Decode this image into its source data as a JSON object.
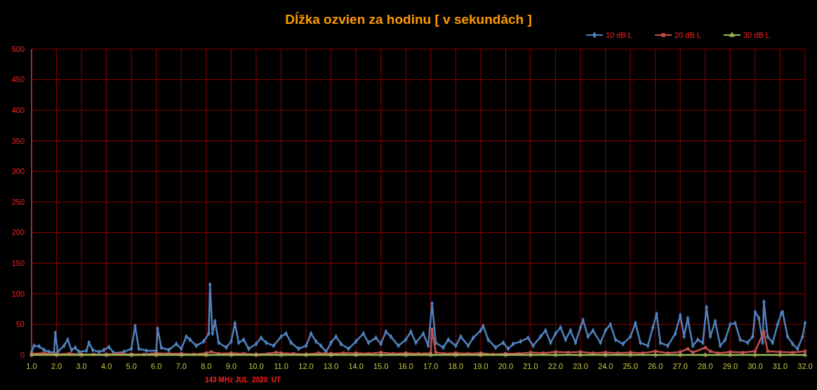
{
  "chart_data": {
    "type": "line",
    "title": "Dĺžka ozvien za hodinu [ v sekundách ]",
    "xlabel": "143 MHz JUL  2020  UT",
    "xlim": [
      1,
      32
    ],
    "ylim": [
      0,
      500
    ],
    "yticks": [
      0,
      50,
      100,
      150,
      200,
      250,
      300,
      350,
      400,
      450,
      500
    ],
    "xticks": [
      {
        "value": 1,
        "label": "1.0"
      },
      {
        "value": 2,
        "label": "2.0"
      },
      {
        "value": 3,
        "label": "3.0"
      },
      {
        "value": 4,
        "label": "4.0"
      },
      {
        "value": 5,
        "label": "5.0"
      },
      {
        "value": 6,
        "label": "6.0"
      },
      {
        "value": 7,
        "label": "7.0"
      },
      {
        "value": 8,
        "label": "8.0"
      },
      {
        "value": 9,
        "label": "9.0"
      },
      {
        "value": 10,
        "label": "10.0"
      },
      {
        "value": 11,
        "label": "11.0"
      },
      {
        "value": 12,
        "label": "12.0"
      },
      {
        "value": 13,
        "label": "13.0"
      },
      {
        "value": 14,
        "label": "14.0"
      },
      {
        "value": 15,
        "label": "15.0"
      },
      {
        "value": 16,
        "label": "16.0"
      },
      {
        "value": 17,
        "label": "17.0"
      },
      {
        "value": 18,
        "label": "18.0"
      },
      {
        "value": 19,
        "label": "19.0"
      },
      {
        "value": 20,
        "label": "20.0"
      },
      {
        "value": 21,
        "label": "21.0"
      },
      {
        "value": 22,
        "label": "22.0"
      },
      {
        "value": 23,
        "label": "23.0"
      },
      {
        "value": 24,
        "label": "24.0"
      },
      {
        "value": 25,
        "label": "25.0"
      },
      {
        "value": 26,
        "label": "26.0"
      },
      {
        "value": 27,
        "label": "27.0"
      },
      {
        "value": 28,
        "label": "28.0"
      },
      {
        "value": 29,
        "label": "29.0"
      },
      {
        "value": 30,
        "label": "30.0"
      },
      {
        "value": 31,
        "label": "31.0"
      },
      {
        "value": 32,
        "label": "32.0"
      }
    ],
    "grid": true,
    "legend": "top right",
    "line_style": "solid",
    "series": [
      {
        "name": "10 dB L",
        "color": "#4f81bd",
        "marker": "diamond",
        "x": [
          1.0,
          1.1,
          1.3,
          1.5,
          1.7,
          1.9,
          1.95,
          2.05,
          2.3,
          2.45,
          2.6,
          2.75,
          2.9,
          3.2,
          3.3,
          3.45,
          3.7,
          3.9,
          4.1,
          4.3,
          4.7,
          5.0,
          5.15,
          5.3,
          5.6,
          6.0,
          6.05,
          6.2,
          6.5,
          6.8,
          7.0,
          7.2,
          7.35,
          7.6,
          7.9,
          8.1,
          8.15,
          8.25,
          8.35,
          8.5,
          8.8,
          9.0,
          9.15,
          9.3,
          9.5,
          9.7,
          10.0,
          10.2,
          10.4,
          10.7,
          11.0,
          11.2,
          11.4,
          11.7,
          12.0,
          12.2,
          12.4,
          12.6,
          12.8,
          13.0,
          13.2,
          13.4,
          13.7,
          14.0,
          14.3,
          14.5,
          14.8,
          15.0,
          15.2,
          15.4,
          15.7,
          16.0,
          16.2,
          16.4,
          16.7,
          16.9,
          17.05,
          17.2,
          17.5,
          17.7,
          18.0,
          18.2,
          18.5,
          18.7,
          19.0,
          19.1,
          19.3,
          19.6,
          19.9,
          20.1,
          20.3,
          20.6,
          20.9,
          21.1,
          21.4,
          21.6,
          21.8,
          22.0,
          22.2,
          22.4,
          22.6,
          22.8,
          23.0,
          23.1,
          23.3,
          23.5,
          23.8,
          24.0,
          24.2,
          24.4,
          24.7,
          25.0,
          25.2,
          25.4,
          25.7,
          25.9,
          26.05,
          26.2,
          26.5,
          26.8,
          27.0,
          27.15,
          27.3,
          27.5,
          27.7,
          27.9,
          28.05,
          28.2,
          28.4,
          28.6,
          28.8,
          29.0,
          29.2,
          29.4,
          29.7,
          29.9,
          30.0,
          30.15,
          30.3,
          30.35,
          30.5,
          30.7,
          30.9,
          31.05,
          31.1,
          31.3,
          31.5,
          31.7,
          31.9,
          32.0
        ],
        "values": [
          5,
          15,
          14,
          8,
          5,
          4,
          36,
          5,
          15,
          25,
          8,
          12,
          5,
          7,
          20,
          8,
          5,
          8,
          13,
          3,
          5,
          10,
          47,
          10,
          7,
          7,
          43,
          12,
          8,
          18,
          10,
          30,
          25,
          15,
          22,
          35,
          115,
          35,
          55,
          20,
          12,
          22,
          52,
          20,
          25,
          10,
          18,
          28,
          20,
          15,
          30,
          35,
          20,
          10,
          15,
          35,
          22,
          15,
          5,
          20,
          30,
          18,
          10,
          22,
          35,
          20,
          28,
          18,
          38,
          30,
          15,
          25,
          38,
          20,
          35,
          15,
          84,
          20,
          12,
          25,
          15,
          30,
          15,
          28,
          40,
          47,
          25,
          12,
          20,
          10,
          18,
          22,
          28,
          15,
          30,
          40,
          20,
          35,
          45,
          25,
          40,
          20,
          45,
          57,
          30,
          40,
          20,
          40,
          50,
          25,
          18,
          30,
          52,
          20,
          15,
          45,
          67,
          20,
          15,
          35,
          65,
          30,
          60,
          15,
          25,
          20,
          78,
          30,
          55,
          15,
          25,
          50,
          52,
          25,
          20,
          30,
          70,
          60,
          20,
          87,
          30,
          20,
          50,
          68,
          70,
          30,
          18,
          10,
          30,
          52
        ]
      },
      {
        "name": "20 dB L",
        "color": "#c0504d",
        "marker": "square",
        "x": [
          1,
          1.5,
          2,
          2.5,
          3,
          3.5,
          4,
          4.5,
          5,
          5.5,
          6,
          6.5,
          7,
          7.5,
          8,
          8.2,
          8.5,
          9,
          9.5,
          10,
          10.5,
          10.8,
          11,
          11.5,
          12,
          12.5,
          13,
          13.5,
          14,
          14.5,
          15,
          15.5,
          16,
          16.5,
          17,
          17.05,
          17.2,
          17.5,
          18,
          18.5,
          19,
          19.5,
          20,
          20.5,
          21,
          21.5,
          22,
          22.5,
          23,
          23.5,
          24,
          24.5,
          25,
          25.5,
          26,
          26.5,
          27,
          27.3,
          27.5,
          28,
          28.2,
          28.5,
          29,
          29.5,
          30,
          30.35,
          30.5,
          31,
          31.5,
          32
        ],
        "values": [
          2,
          3,
          1,
          2,
          1,
          1,
          1,
          2,
          1,
          1,
          3,
          2,
          2,
          1,
          3,
          5,
          2,
          3,
          2,
          1,
          2,
          4,
          3,
          2,
          1,
          3,
          2,
          3,
          3,
          2,
          4,
          2,
          3,
          2,
          3,
          42,
          4,
          2,
          3,
          2,
          3,
          1,
          2,
          2,
          4,
          3,
          5,
          4,
          5,
          3,
          4,
          3,
          4,
          3,
          6,
          3,
          5,
          10,
          4,
          12,
          6,
          3,
          5,
          4,
          6,
          38,
          6,
          5,
          4,
          6
        ]
      },
      {
        "name": "30 dB L",
        "color": "#9bbb59",
        "marker": "triangle",
        "x": [
          1,
          2,
          3,
          4,
          5,
          6,
          7,
          8,
          9,
          10,
          11,
          12,
          13,
          14,
          15,
          16,
          17,
          18,
          19,
          20,
          21,
          22,
          23,
          24,
          25,
          26,
          27,
          28,
          29,
          30,
          31,
          32
        ],
        "values": [
          0,
          0,
          0,
          0,
          0,
          0,
          0,
          0,
          0,
          0,
          0,
          0,
          0,
          0,
          0,
          0,
          0,
          0,
          0,
          0,
          0,
          0,
          0,
          0,
          0,
          0,
          0,
          0,
          0,
          0,
          0,
          0
        ]
      }
    ]
  }
}
